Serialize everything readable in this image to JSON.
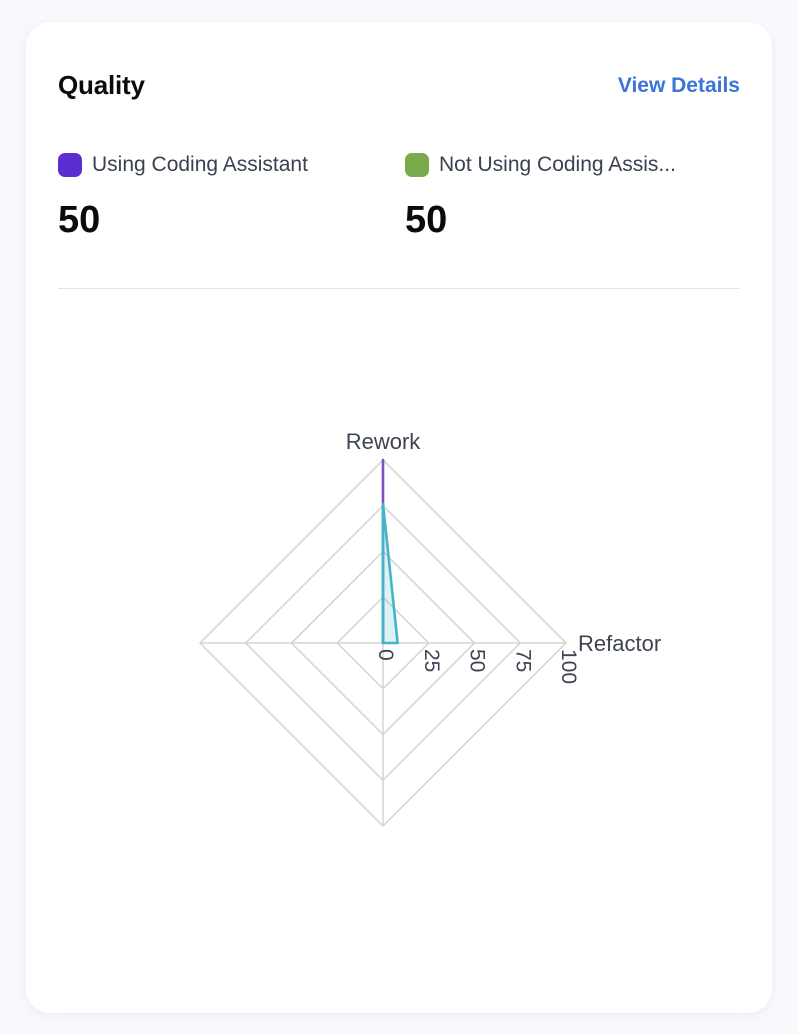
{
  "card": {
    "title": "Quality",
    "view_details_label": "View Details"
  },
  "legend": [
    {
      "label": "Using Coding Assistant",
      "value": "50",
      "color": "#5b2ed1"
    },
    {
      "label": "Not Using Coding Assis...",
      "value": "50",
      "color": "#7aaa4b"
    }
  ],
  "chart_data": {
    "type": "radar",
    "title": "Quality",
    "axes": [
      "Rework",
      "Refactor",
      "",
      ""
    ],
    "axis_positions": [
      "top",
      "right",
      "bottom",
      "left"
    ],
    "max": 100,
    "tick_labels": [
      "0",
      "25",
      "50",
      "75",
      "100"
    ],
    "tick_values": [
      0,
      25,
      50,
      75,
      100
    ],
    "series": [
      {
        "name": "Using Coding Assistant",
        "values": [
          100,
          0,
          0,
          0
        ],
        "stroke": "#7e50c0",
        "fill": "rgba(126,80,192,0)"
      },
      {
        "name": "Not Using Coding Assis...",
        "values": [
          76,
          8,
          0,
          0
        ],
        "stroke": "#44b5c6",
        "fill": "rgba(68,181,198,0.18)"
      }
    ],
    "grid_color": "#d3d3d3",
    "label_color": "#3e4450",
    "grid_shape": "diamond",
    "legend_position": "top"
  }
}
